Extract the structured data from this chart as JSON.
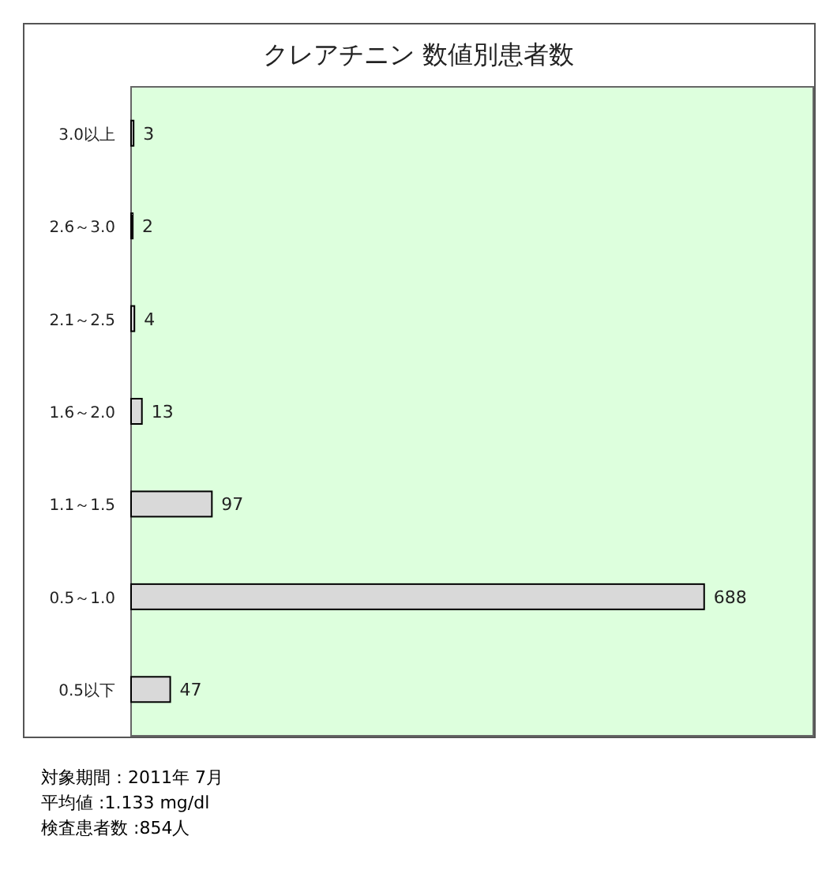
{
  "chart_data": {
    "type": "bar",
    "orientation": "horizontal",
    "title": "クレアチニン 数値別患者数",
    "categories": [
      "3.0以上",
      "2.6～3.0",
      "2.1～2.5",
      "1.6～2.0",
      "1.1～1.5",
      "0.5～1.0",
      "0.5以下"
    ],
    "values": [
      3,
      2,
      4,
      13,
      97,
      688,
      47
    ],
    "color": "#d9d9d9",
    "data_labels": true,
    "annotations": [
      "対象期間：2011年 7月",
      "平均値 :1.133 mg/dl",
      "検査患者数 :854人"
    ]
  }
}
